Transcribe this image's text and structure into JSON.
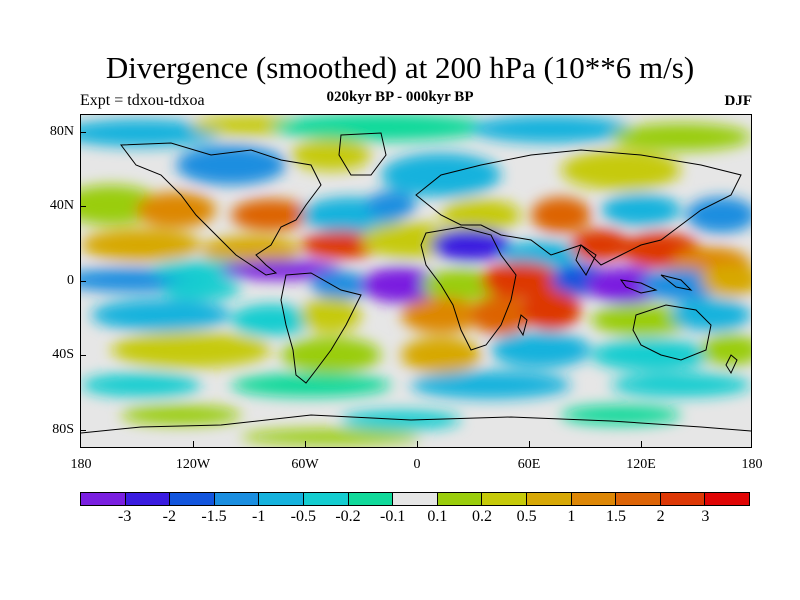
{
  "title": "Divergence (smoothed) at 200 hPa (10**6 m/s)",
  "subtitle": "020kyr BP - 000kyr BP",
  "left_label": "Expt = tdxou-tdxoa",
  "right_label": "DJF",
  "map": {
    "projection": "cylindrical-equidistant",
    "lon_range": [
      -180,
      180
    ],
    "lat_range": [
      -90,
      90
    ],
    "lat_ticks": [
      "80N",
      "40N",
      "0",
      "40S",
      "80S"
    ],
    "lon_ticks": [
      "180",
      "120W",
      "60W",
      "0",
      "60E",
      "120E",
      "180"
    ],
    "coastlines": true,
    "variable": "divergence-anomaly-field"
  },
  "colorbar": {
    "colors": [
      "#7a1fe0",
      "#3a1ce0",
      "#1255dd",
      "#1a8ee0",
      "#15b2dd",
      "#14cdd0",
      "#10d99a",
      "#e6e6e6",
      "#9acd0c",
      "#c6ca0a",
      "#d7a806",
      "#dd8706",
      "#dd6406",
      "#dd3806",
      "#e00505"
    ],
    "labels": [
      "-3",
      "-2",
      "-1.5",
      "-1",
      "-0.5",
      "-0.2",
      "-0.1",
      "0.1",
      "0.2",
      "0.5",
      "1",
      "1.5",
      "2",
      "3"
    ]
  }
}
